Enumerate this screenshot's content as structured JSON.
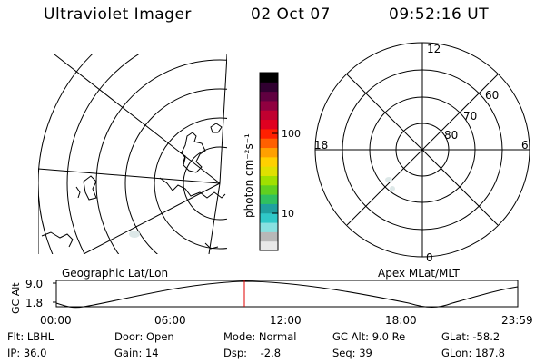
{
  "header": {
    "title": "Ultraviolet Imager",
    "date": "02 Oct 07",
    "time": "09:52:16 UT"
  },
  "colorbar": {
    "unit_label": "photon cm⁻²s⁻¹",
    "ticks": [
      "100",
      "10"
    ],
    "colors": [
      "#e8e8e8",
      "#b8b8b8",
      "#88e0e0",
      "#30c8c8",
      "#20a0a0",
      "#30c060",
      "#60d020",
      "#a0e000",
      "#e0e000",
      "#ffd000",
      "#ffa000",
      "#ff6000",
      "#ff2000",
      "#e00020",
      "#c00030",
      "#900040",
      "#600040",
      "#300030",
      "#000000"
    ]
  },
  "left_panel": {
    "label": "Geographic Lat/Lon"
  },
  "right_panel": {
    "label": "Apex MLat/MLT",
    "mlt_labels": {
      "top": "12",
      "left": "18",
      "right": "6",
      "bottom": "0"
    },
    "lat_labels": [
      "60",
      "70",
      "80"
    ]
  },
  "altitude_plot": {
    "ylabel": "GC Alt",
    "yticks": [
      "9.0",
      "1.8"
    ],
    "xticks": [
      "00:00",
      "06:00",
      "12:00",
      "18:00",
      "23:59"
    ],
    "marker_color": "#e00000"
  },
  "info": {
    "flt": "Flt: LBHL",
    "ip": "IP: 36.0",
    "door": "Door: Open",
    "gain": "Gain: 14",
    "mode": "Mode: Normal",
    "dsp": "Dsp:    -2.8",
    "gcalt": "GC Alt: 9.0 Re",
    "seq": "Seq: 39",
    "glat": "GLat: -58.2",
    "glon": "GLon: 187.8"
  }
}
